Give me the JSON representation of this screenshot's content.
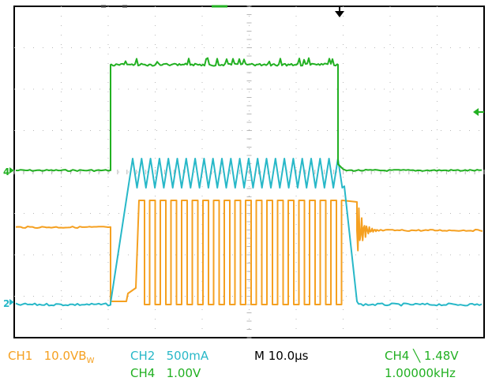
{
  "colors": {
    "ch1": "#f5a020",
    "ch2": "#28b8c8",
    "ch4": "#22b022",
    "grid": "#b8b8b8",
    "frame": "#000000",
    "background": "#ffffff"
  },
  "markers": {
    "ch4_level": "4",
    "ch2_level": "2",
    "trigger_position_icon": "down-arrow",
    "trigger_level_icon": "left-arrow"
  },
  "readouts": {
    "ch1_label": "CH1",
    "ch1_scale": "10.0V",
    "ch1_bw": "B",
    "ch1_bw_sub": "W",
    "ch2_label": "CH2",
    "ch2_scale": "500mA",
    "ch4_label": "CH4",
    "ch4_scale": "1.00V",
    "timebase": "M 10.0",
    "timebase_unit": "µs",
    "trigger_source": "CH4",
    "trigger_slope": "╲",
    "trigger_level": "1.48V",
    "frequency": "1.00000kHz"
  }
}
